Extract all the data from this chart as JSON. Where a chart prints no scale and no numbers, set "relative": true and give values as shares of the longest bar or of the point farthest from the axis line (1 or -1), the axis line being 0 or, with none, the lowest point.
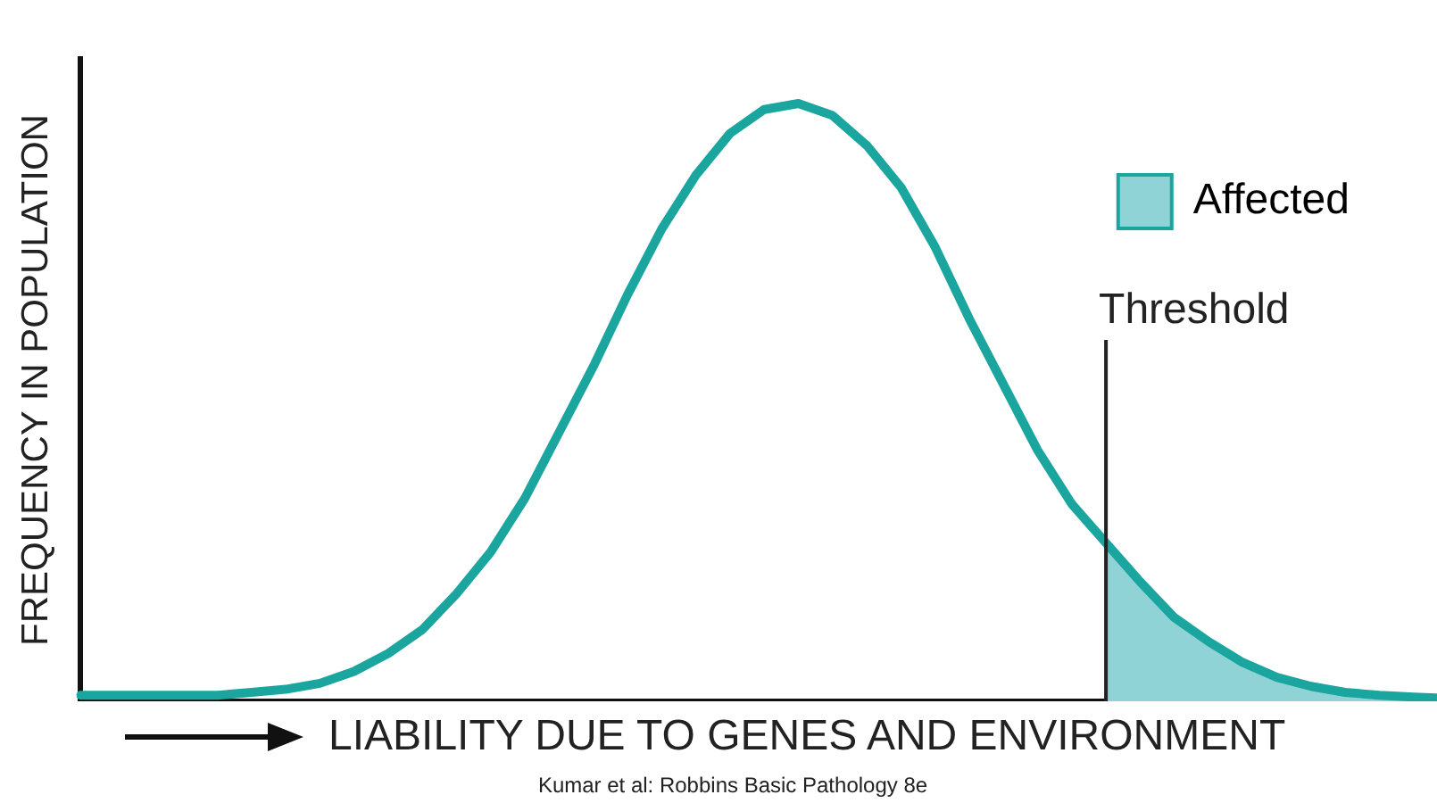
{
  "chart_data": {
    "type": "line",
    "relative": true,
    "ylabel": "FREQUENCY IN POPULATION",
    "xlabel": "LIABILITY DUE TO GENES AND ENVIRONMENT",
    "grid": false,
    "legend": "top right",
    "marker": "none",
    "categories": [
      null,
      null,
      null,
      null,
      null,
      null,
      null,
      null,
      null,
      null,
      null,
      null,
      null,
      null,
      null,
      null,
      null,
      null,
      null,
      null,
      null,
      null,
      null,
      null,
      null,
      null,
      null,
      null,
      null,
      null,
      null,
      null,
      null,
      null,
      null,
      null,
      null,
      null,
      null,
      null,
      null
    ],
    "series": [
      {
        "type": "line",
        "color": "#1aa59e",
        "values": [
          0.01,
          0.01,
          0.01,
          0.01,
          0.01,
          0.015,
          0.02,
          0.03,
          0.05,
          0.08,
          0.12,
          0.18,
          0.25,
          0.34,
          0.45,
          0.56,
          0.68,
          0.79,
          0.88,
          0.95,
          0.99,
          1,
          0.98,
          0.93,
          0.86,
          0.76,
          0.64,
          0.53,
          0.42,
          0.33,
          0.265,
          0.2,
          0.14,
          0.1,
          0.065,
          0.04,
          0.025,
          0.015,
          0.01,
          0.007,
          0.005
        ]
      },
      {
        "type": "area",
        "name": "Affected",
        "color": "#8fd3d6",
        "values": [
          null,
          null,
          null,
          null,
          null,
          null,
          null,
          null,
          null,
          null,
          null,
          null,
          null,
          null,
          null,
          null,
          null,
          null,
          null,
          null,
          null,
          null,
          null,
          null,
          null,
          null,
          null,
          null,
          null,
          null,
          0.265,
          0.2,
          0.14,
          0.1,
          0.065,
          0.04,
          0.025,
          0.015,
          0.01,
          0.007,
          0.005
        ]
      }
    ],
    "annotations": [
      "Threshold",
      "Kumar et al: Robbins Basic Pathology 8e"
    ]
  }
}
